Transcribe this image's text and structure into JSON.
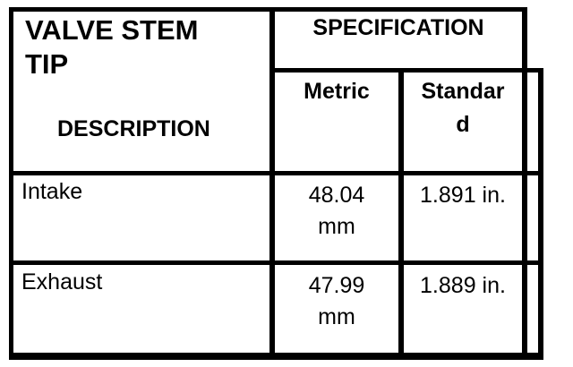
{
  "page": {
    "background_color": "#ffffff",
    "line_color": "#000000"
  },
  "table": {
    "header": {
      "title": "VALVE STEM TIP",
      "description_label": "DESCRIPTION",
      "specification_label": "SPECIFICATION",
      "columns": {
        "metric": "Metric",
        "standard": "Standar\nd"
      }
    },
    "rows": [
      {
        "label": "Intake",
        "metric": "48.04\nmm",
        "standard": "1.891 in."
      },
      {
        "label": "Exhaust",
        "metric": "47.99\nmm",
        "standard": "1.889 in."
      }
    ]
  }
}
